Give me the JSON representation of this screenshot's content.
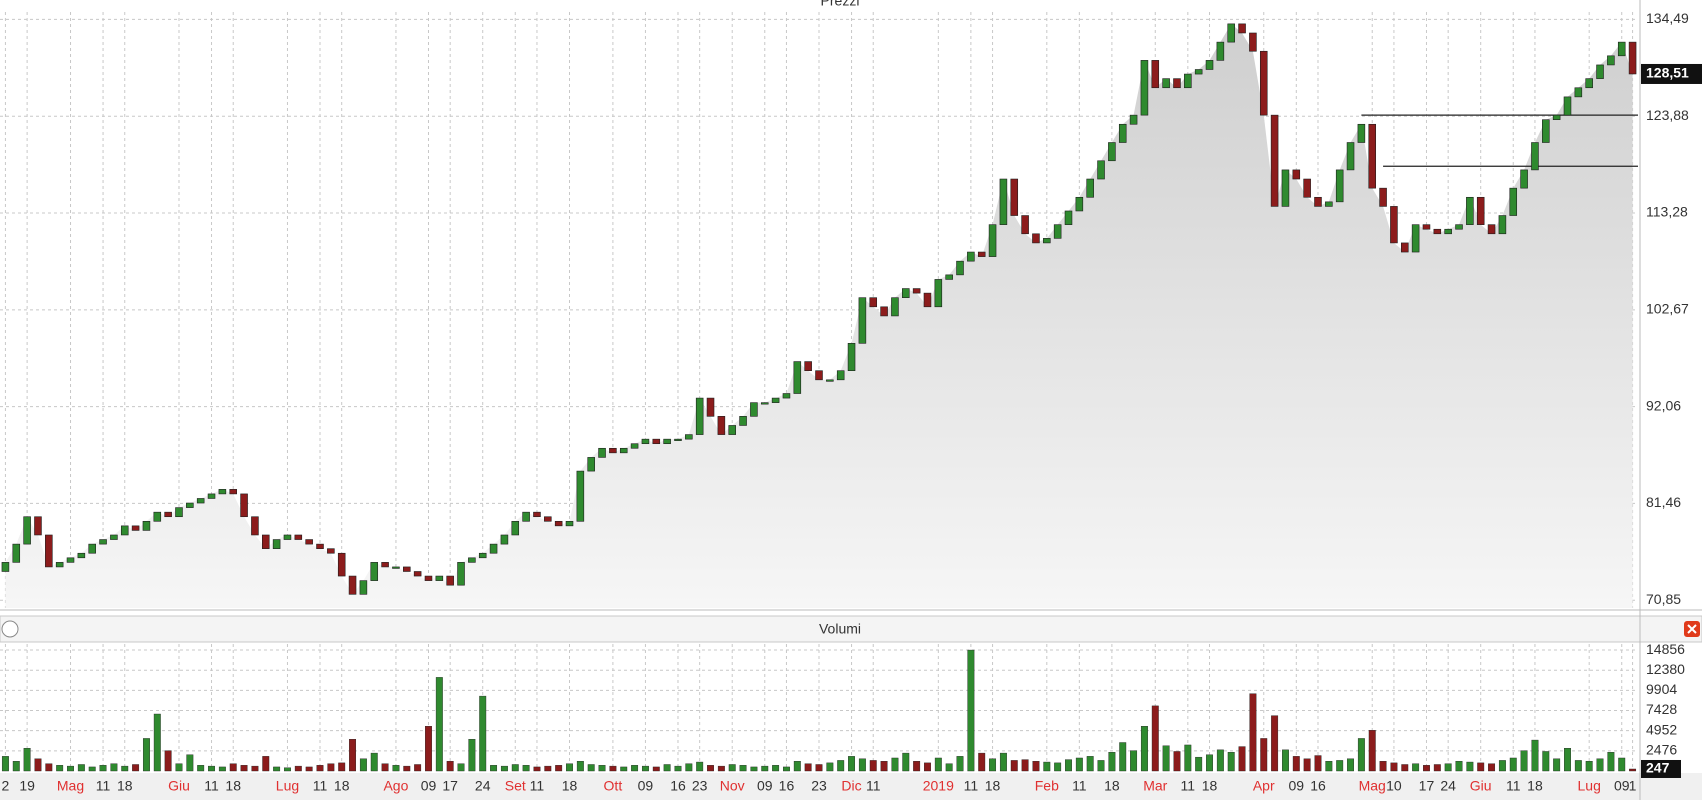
{
  "chart_data": [
    {
      "type": "candlestick",
      "title": "Prezzi",
      "categories": [
        "2",
        null,
        "19",
        null,
        null,
        null,
        "Mag",
        null,
        null,
        "11",
        null,
        "18",
        null,
        null,
        null,
        null,
        "Giu",
        null,
        null,
        "11",
        null,
        "18",
        null,
        null,
        null,
        null,
        "Lug",
        null,
        null,
        "11",
        null,
        "18",
        null,
        null,
        null,
        null,
        "Ago",
        null,
        null,
        "09",
        null,
        "17",
        null,
        null,
        "24",
        null,
        null,
        "Set",
        null,
        "11",
        null,
        null,
        "18",
        null,
        null,
        null,
        "Ott",
        null,
        null,
        "09",
        null,
        null,
        "16",
        null,
        "23",
        null,
        null,
        "Nov",
        null,
        null,
        "09",
        null,
        "16",
        null,
        null,
        "23",
        null,
        null,
        "Dic",
        null,
        "11",
        null,
        null,
        null,
        null,
        null,
        "2019",
        null,
        null,
        "11",
        null,
        "18",
        null,
        null,
        null,
        null,
        "Feb",
        null,
        null,
        "11",
        null,
        null,
        "18",
        null,
        null,
        null,
        "Mar",
        null,
        null,
        "11",
        null,
        "18",
        null,
        null,
        null,
        null,
        "Apr",
        null,
        null,
        "09",
        null,
        "16",
        null,
        null,
        null,
        null,
        "Mag",
        null,
        "10",
        null,
        null,
        "17",
        null,
        "24",
        null,
        null,
        "Giu",
        null,
        null,
        "11",
        null,
        "18",
        null,
        null,
        null,
        null,
        "Lug",
        null,
        null,
        "09",
        "1"
      ],
      "open": [
        74,
        75,
        77,
        80,
        78,
        74.5,
        75,
        75.5,
        76,
        77,
        77.5,
        78,
        79,
        78.5,
        79.5,
        80.5,
        80,
        81,
        81.5,
        82,
        82.5,
        83,
        82.5,
        80,
        78,
        76.5,
        77.5,
        78,
        77.5,
        77,
        76.5,
        76,
        73.5,
        71.5,
        73,
        75,
        74.5,
        74.5,
        74,
        73.5,
        73,
        73.5,
        72.5,
        75,
        75.5,
        76,
        77,
        78,
        79.5,
        80.5,
        80,
        79.5,
        79,
        79.5,
        85,
        86.5,
        87.5,
        87,
        87.5,
        88,
        88.5,
        88,
        88.5,
        88.5,
        89,
        93,
        91,
        89,
        90,
        91,
        92.5,
        92.5,
        93,
        93.5,
        97,
        96,
        95,
        95,
        96,
        99,
        104,
        103,
        102,
        104,
        105,
        104.5,
        103,
        106,
        106.5,
        108,
        109,
        108.5,
        112,
        117,
        113,
        111,
        110,
        110.5,
        112,
        113.5,
        115,
        117,
        119,
        121,
        123,
        124,
        130,
        127,
        128,
        127,
        128.5,
        129,
        130,
        132,
        134,
        133,
        131,
        124,
        114,
        118,
        117,
        115,
        114,
        114.5,
        118,
        121,
        123,
        116,
        114,
        110,
        109,
        112,
        111.5,
        111,
        111.5,
        112,
        115,
        112,
        111,
        113,
        116,
        118,
        121,
        123.5,
        124,
        126,
        127,
        128,
        129.5,
        130.5,
        132
      ],
      "close": [
        75,
        77,
        80,
        78,
        74.5,
        75,
        75.5,
        76,
        77,
        77.5,
        78,
        79,
        78.5,
        79.5,
        80.5,
        80,
        81,
        81.5,
        82,
        82.5,
        83,
        82.5,
        80,
        78,
        76.5,
        77.5,
        78,
        77.5,
        77,
        76.5,
        76,
        73.5,
        71.5,
        73,
        75,
        74.5,
        74.5,
        74,
        73.5,
        73,
        73.5,
        72.5,
        75,
        75.5,
        76,
        77,
        78,
        79.5,
        80.5,
        80,
        79.5,
        79,
        79.5,
        85,
        86.5,
        87.5,
        87,
        87.5,
        88,
        88.5,
        88,
        88.5,
        88.5,
        89,
        93,
        91,
        89,
        90,
        91,
        92.5,
        92.5,
        93,
        93.5,
        97,
        96,
        95,
        95,
        96,
        99,
        104,
        103,
        102,
        104,
        105,
        104.5,
        103,
        106,
        106.5,
        108,
        109,
        108.5,
        112,
        117,
        113,
        111,
        110,
        110.5,
        112,
        113.5,
        115,
        117,
        119,
        121,
        123,
        124,
        130,
        127,
        128,
        127,
        128.5,
        129,
        130,
        132,
        134,
        133,
        131,
        124,
        114,
        118,
        117,
        115,
        114,
        114.5,
        118,
        121,
        123,
        116,
        114,
        110,
        109,
        112,
        111.5,
        111,
        111.5,
        112,
        115,
        112,
        111,
        113,
        116,
        118,
        121,
        123.5,
        124,
        126,
        127,
        128,
        129.5,
        130.5,
        132,
        128.51
      ],
      "colors": {
        "up": "#2f8a2f",
        "down": "#8c1c1c"
      },
      "ylim": [
        70,
        135.3
      ],
      "yticks": [
        {
          "value": 70.85,
          "label": "70,85"
        },
        {
          "value": 81.46,
          "label": "81,46"
        },
        {
          "value": 92.06,
          "label": "92,06"
        },
        {
          "value": 102.67,
          "label": "102,67"
        },
        {
          "value": 113.28,
          "label": "113,28"
        },
        {
          "value": 123.88,
          "label": "123,88"
        },
        {
          "value": 134.49,
          "label": "134,49"
        }
      ],
      "last_price": {
        "value": 128.51,
        "label": "128,51"
      },
      "hlines": [
        {
          "value": 124,
          "start": 125
        },
        {
          "value": 118.4,
          "start": 127
        }
      ],
      "grid": true
    },
    {
      "type": "bar",
      "title": "Volumi",
      "values": [
        1800,
        1200,
        2800,
        1500,
        900,
        700,
        600,
        800,
        500,
        700,
        900,
        600,
        800,
        4000,
        7000,
        2500,
        900,
        2000,
        700,
        600,
        500,
        900,
        700,
        600,
        1800,
        500,
        400,
        600,
        500,
        700,
        900,
        1000,
        3900,
        1500,
        2200,
        900,
        700,
        600,
        800,
        5500,
        11500,
        1200,
        900,
        3900,
        9200,
        700,
        600,
        800,
        700,
        500,
        600,
        700,
        900,
        1200,
        800,
        700,
        600,
        500,
        700,
        600,
        500,
        800,
        600,
        900,
        1100,
        700,
        600,
        800,
        700,
        500,
        600,
        700,
        500,
        1200,
        900,
        800,
        1000,
        1300,
        1800,
        1500,
        1300,
        1200,
        1600,
        2200,
        1200,
        1000,
        1600,
        900,
        1800,
        14856,
        2200,
        1500,
        2200,
        1300,
        1400,
        1200,
        1100,
        1000,
        1400,
        1600,
        1800,
        1300,
        2300,
        3500,
        2500,
        5500,
        8000,
        3100,
        2400,
        3200,
        1700,
        2000,
        2600,
        2300,
        3000,
        9500,
        4000,
        6800,
        2600,
        1800,
        1500,
        1900,
        1200,
        1300,
        1500,
        4000,
        5000,
        1200,
        1000,
        800,
        900,
        700,
        800,
        900,
        1200,
        1100,
        1000,
        900,
        1300,
        1600,
        2500,
        3800,
        2400,
        1500,
        2800,
        1300,
        1200,
        1500,
        2300,
        1600,
        247
      ],
      "ylim": [
        0,
        15600
      ],
      "yticks": [
        2476,
        4952,
        7428,
        9904,
        12380,
        14856
      ],
      "grid": true
    }
  ]
}
